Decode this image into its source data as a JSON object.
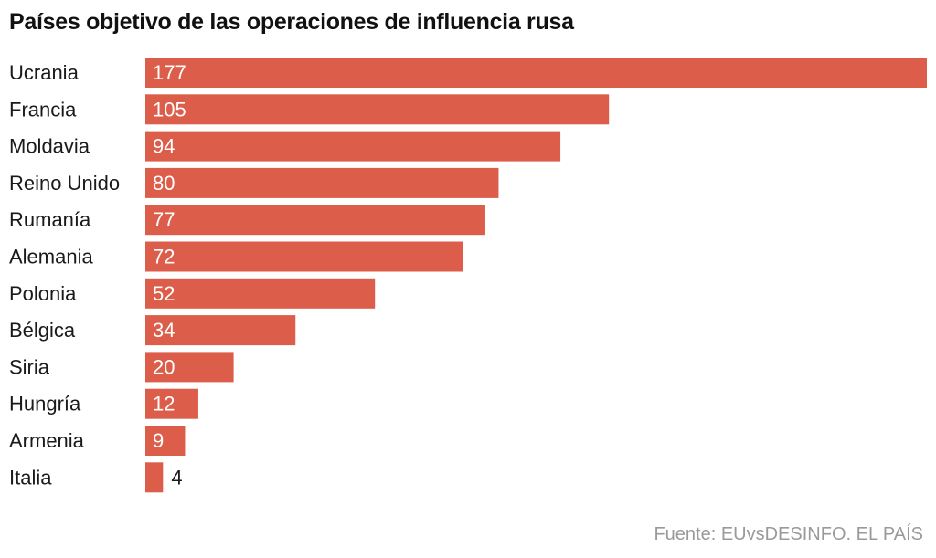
{
  "colors": {
    "bar": "#dc5d4a",
    "label_inside": "#ffffff",
    "label_outside": "#1a1a1a"
  },
  "chart_data": {
    "type": "bar",
    "orientation": "horizontal",
    "title": "Países objetivo de las operaciones de influencia rusa",
    "source": "Fuente: EUvsDESINFO. EL PAÍS",
    "categories": [
      "Ucrania",
      "Francia",
      "Moldavia",
      "Reino Unido",
      "Rumanía",
      "Alemania",
      "Polonia",
      "Bélgica",
      "Siria",
      "Hungría",
      "Armenia",
      "Italia"
    ],
    "values": [
      177,
      105,
      94,
      80,
      77,
      72,
      52,
      34,
      20,
      12,
      9,
      4
    ],
    "xlim": [
      0,
      177
    ],
    "grid": false,
    "legend": "none"
  }
}
